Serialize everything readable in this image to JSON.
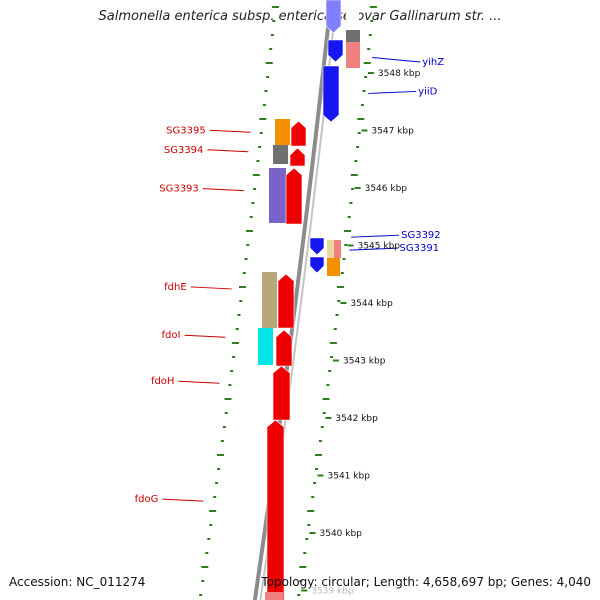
{
  "title": "Salmonella enterica subsp. enterica serovar Gallinarum str. ...",
  "accession_text": "Accession: NC_011274",
  "summary_text": "Topology: circular; Length: 4,658,697 bp; Genes: 4,040",
  "colors": {
    "red": "#ee0000",
    "blue": "#1616ee",
    "orange": "#f39000",
    "gray": "#707070",
    "purple": "#7a63c8",
    "khaki": "#b8a878",
    "cyan": "#00e6e6",
    "pink": "#f08080",
    "wheat": "#e8d8a0",
    "left_label": "#cc0000",
    "right_label": "#0000cc",
    "tick": "#2e7d1e",
    "backbone": "#8c8c8c"
  },
  "scale_ticks": [
    {
      "kbp": 3548,
      "label": "3548 kbp"
    },
    {
      "kbp": 3547,
      "label": "3547 kbp"
    },
    {
      "kbp": 3546,
      "label": "3546 kbp"
    },
    {
      "kbp": 3545,
      "label": "3545 kbp"
    },
    {
      "kbp": 3544,
      "label": "3544 kbp"
    },
    {
      "kbp": 3543,
      "label": "3543 kbp"
    },
    {
      "kbp": 3542,
      "label": "3542 kbp"
    },
    {
      "kbp": 3541,
      "label": "3541 kbp"
    },
    {
      "kbp": 3540,
      "label": "3540 kbp"
    },
    {
      "kbp": 3539,
      "label": "3539 kbp"
    }
  ],
  "genes": [
    {
      "label": "yihZ",
      "strand": "+",
      "start_kbp": 3548.05,
      "end_kbp": 3548.35,
      "label_side": "right"
    },
    {
      "label": "yiiD",
      "strand": "+",
      "start_kbp": 3547.1,
      "end_kbp": 3548.05,
      "label_side": "right"
    },
    {
      "label": "SG3395",
      "strand": "-",
      "start_kbp": 3546.75,
      "end_kbp": 3547.05,
      "label_side": "left"
    },
    {
      "label": "SG3394",
      "strand": "-",
      "start_kbp": 3546.4,
      "end_kbp": 3546.72,
      "label_side": "left"
    },
    {
      "label": "SG3393",
      "strand": "-",
      "start_kbp": 3545.4,
      "end_kbp": 3546.37,
      "label_side": "left"
    },
    {
      "label": "SG3392",
      "strand": "+",
      "start_kbp": 3544.95,
      "end_kbp": 3545.2,
      "label_side": "right"
    },
    {
      "label": "SG3391",
      "strand": "+",
      "start_kbp": 3544.75,
      "end_kbp": 3544.95,
      "label_side": "right"
    },
    {
      "label": "fdhE",
      "strand": "-",
      "start_kbp": 3543.7,
      "end_kbp": 3544.65,
      "label_side": "left"
    },
    {
      "label": "fdoI",
      "strand": "-",
      "start_kbp": 3543.0,
      "end_kbp": 3543.67,
      "label_side": "left"
    },
    {
      "label": "fdoH",
      "strand": "-",
      "start_kbp": 3542.1,
      "end_kbp": 3542.97,
      "label_side": "left"
    },
    {
      "label": "fdoG",
      "strand": "-",
      "start_kbp": 3538.9,
      "end_kbp": 3542.07,
      "label_side": "left"
    }
  ]
}
